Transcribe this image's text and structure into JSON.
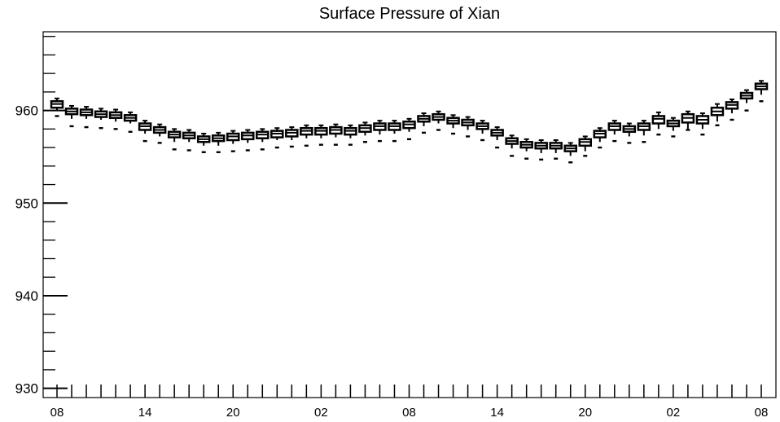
{
  "chart_data": {
    "type": "boxplot",
    "title": "Surface Pressure of Xian",
    "xlabel": "",
    "ylabel": "",
    "ylim": [
      929,
      968.5
    ],
    "yticks": [
      930,
      940,
      950,
      960
    ],
    "yticks_minor_step": 2,
    "x_count": 49,
    "xtick_labels": [
      {
        "index": 0,
        "label": "08"
      },
      {
        "index": 6,
        "label": "14"
      },
      {
        "index": 12,
        "label": "20"
      },
      {
        "index": 18,
        "label": "02"
      },
      {
        "index": 24,
        "label": "08"
      },
      {
        "index": 30,
        "label": "14"
      },
      {
        "index": 36,
        "label": "20"
      },
      {
        "index": 42,
        "label": "02"
      },
      {
        "index": 48,
        "label": "08"
      }
    ],
    "grid": false,
    "median": [
      960.7,
      959.9,
      959.8,
      959.6,
      959.5,
      959.2,
      958.3,
      957.9,
      957.4,
      957.3,
      956.9,
      957.0,
      957.2,
      957.3,
      957.4,
      957.5,
      957.6,
      957.8,
      957.8,
      957.9,
      957.8,
      958.1,
      958.3,
      958.3,
      958.5,
      959.1,
      959.3,
      958.9,
      958.7,
      958.3,
      957.6,
      956.7,
      956.3,
      956.2,
      956.2,
      955.9,
      956.6,
      957.5,
      958.3,
      958.0,
      958.3,
      959.1,
      958.6,
      959.2,
      959.0,
      959.9,
      960.6,
      961.6,
      962.6
    ],
    "q1": [
      960.3,
      959.6,
      959.5,
      959.3,
      959.2,
      958.9,
      957.9,
      957.6,
      957.1,
      957.0,
      956.6,
      956.7,
      956.8,
      956.9,
      957.0,
      957.1,
      957.2,
      957.4,
      957.4,
      957.5,
      957.4,
      957.7,
      957.9,
      957.9,
      958.1,
      958.8,
      959.0,
      958.6,
      958.4,
      958.0,
      957.3,
      956.4,
      956.0,
      955.9,
      955.9,
      955.6,
      956.2,
      957.1,
      957.9,
      957.7,
      957.9,
      958.6,
      958.3,
      958.7,
      958.6,
      959.5,
      960.2,
      961.3,
      962.3
    ],
    "q3": [
      961.0,
      960.2,
      960.1,
      959.9,
      959.8,
      959.5,
      958.6,
      958.2,
      957.7,
      957.6,
      957.2,
      957.3,
      957.5,
      957.6,
      957.7,
      957.8,
      957.9,
      958.1,
      958.1,
      958.2,
      958.1,
      958.4,
      958.6,
      958.6,
      958.8,
      959.4,
      959.6,
      959.2,
      959.0,
      958.6,
      957.9,
      957.0,
      956.6,
      956.5,
      956.5,
      956.2,
      956.9,
      957.8,
      958.6,
      958.3,
      958.6,
      959.4,
      958.9,
      959.6,
      959.4,
      960.3,
      960.9,
      961.9,
      962.9
    ],
    "whisker_low": [
      960.0,
      959.1,
      959.1,
      959.0,
      958.8,
      958.6,
      957.5,
      957.2,
      956.6,
      956.6,
      956.2,
      956.2,
      956.4,
      956.5,
      956.6,
      956.8,
      956.8,
      957.0,
      957.0,
      957.1,
      957.0,
      957.3,
      957.4,
      957.5,
      957.7,
      958.3,
      958.6,
      958.1,
      957.9,
      957.5,
      956.8,
      955.9,
      955.6,
      955.4,
      955.4,
      955.1,
      955.6,
      956.6,
      957.4,
      957.2,
      957.3,
      958.0,
      957.8,
      958.0,
      958.0,
      958.8,
      959.7,
      960.8,
      961.7
    ],
    "whisker_high": [
      961.3,
      960.5,
      960.4,
      960.2,
      960.1,
      959.8,
      958.9,
      958.5,
      958.0,
      957.9,
      957.5,
      957.6,
      957.8,
      957.9,
      958.0,
      958.1,
      958.2,
      958.4,
      958.4,
      958.5,
      958.4,
      958.7,
      958.9,
      958.9,
      959.1,
      959.7,
      959.9,
      959.5,
      959.3,
      958.9,
      958.2,
      957.3,
      956.9,
      956.8,
      956.8,
      956.5,
      957.2,
      958.1,
      958.9,
      958.6,
      958.9,
      959.8,
      959.2,
      959.9,
      959.7,
      960.7,
      961.2,
      962.2,
      963.2
    ],
    "outlier_low": [
      959.4,
      958.3,
      958.2,
      958.1,
      958.0,
      957.7,
      956.7,
      956.5,
      955.8,
      955.7,
      955.5,
      955.5,
      955.6,
      955.7,
      955.8,
      956.0,
      956.1,
      956.2,
      956.3,
      956.3,
      956.3,
      956.6,
      956.7,
      956.7,
      956.9,
      957.6,
      957.9,
      957.5,
      957.2,
      956.8,
      956.0,
      955.1,
      954.8,
      954.7,
      954.8,
      954.4,
      955.1,
      956.0,
      956.7,
      956.5,
      956.6,
      957.4,
      957.2,
      957.9,
      957.4,
      958.4,
      959.0,
      960.0,
      961.0
    ]
  }
}
